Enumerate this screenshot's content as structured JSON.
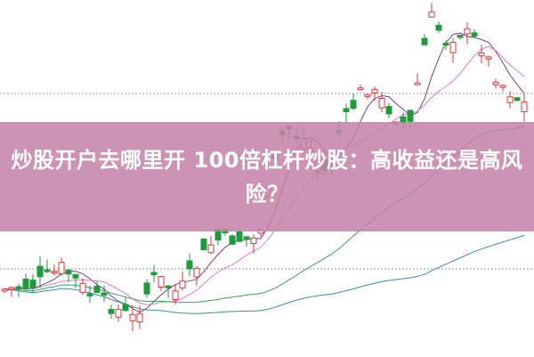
{
  "title": "炒股开户去哪里开 100倍杠杆炒股：高收益还是高风险？",
  "chart_data": {
    "type": "candlestick",
    "title": "",
    "up_color": "#e0353b",
    "down_color": "#1f9a3a",
    "moving_average_colors": [
      "#7a3d8c",
      "#e27ad6",
      "#3aa35a",
      "#3a8fa0"
    ],
    "grid": "dashed horizontal lines",
    "banner_color": "#c480a8"
  }
}
